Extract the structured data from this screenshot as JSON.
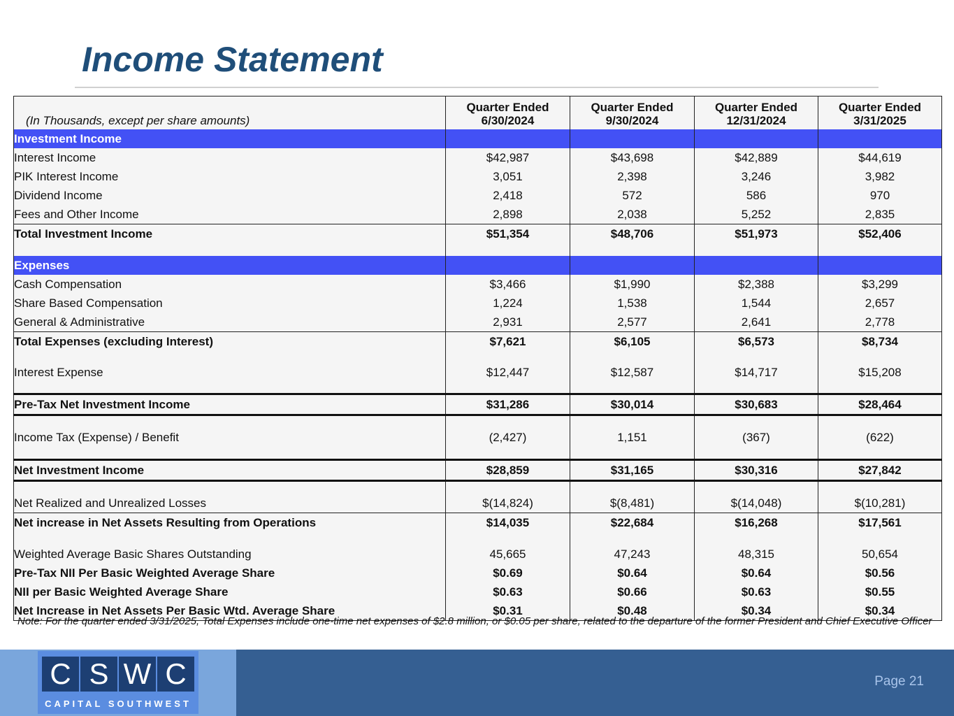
{
  "title": "Income Statement",
  "table": {
    "caption": "(In Thousands, except per share amounts)",
    "columns": [
      {
        "line1": "Quarter Ended",
        "line2": "6/30/2024"
      },
      {
        "line1": "Quarter Ended",
        "line2": "9/30/2024"
      },
      {
        "line1": "Quarter Ended",
        "line2": "12/31/2024"
      },
      {
        "line1": "Quarter Ended",
        "line2": "3/31/2025"
      }
    ],
    "rows": [
      {
        "label": "Investment Income",
        "section": true,
        "values": [
          "",
          "",
          "",
          ""
        ]
      },
      {
        "label": "Interest Income",
        "values": [
          "$42,987",
          "$43,698",
          "$42,889",
          "$44,619"
        ]
      },
      {
        "label": "PIK Interest Income",
        "values": [
          "3,051",
          "2,398",
          "3,246",
          "3,982"
        ]
      },
      {
        "label": "Dividend Income",
        "values": [
          "2,418",
          "572",
          "586",
          "970"
        ]
      },
      {
        "label": "Fees and Other Income",
        "values": [
          "2,898",
          "2,038",
          "5,252",
          "2,835"
        ]
      },
      {
        "label": "Total Investment Income",
        "bold": true,
        "values": [
          "$51,354",
          "$48,706",
          "$51,973",
          "$52,406"
        ]
      },
      {
        "label": "Expenses",
        "section": true,
        "values": [
          "",
          "",
          "",
          ""
        ]
      },
      {
        "label": "Cash Compensation",
        "values": [
          "$3,466",
          "$1,990",
          "$2,388",
          "$3,299"
        ]
      },
      {
        "label": "Share Based Compensation",
        "values": [
          "1,224",
          "1,538",
          "1,544",
          "2,657"
        ]
      },
      {
        "label": "General & Administrative",
        "values": [
          "2,931",
          "2,577",
          "2,641",
          "2,778"
        ]
      },
      {
        "label": "Total Expenses (excluding Interest)",
        "bold": true,
        "values": [
          "$7,621",
          "$6,105",
          "$6,573",
          "$8,734"
        ]
      },
      {
        "label": "Interest Expense",
        "values": [
          "$12,447",
          "$12,587",
          "$14,717",
          "$15,208"
        ]
      },
      {
        "label": "Pre-Tax Net Investment Income",
        "bold": true,
        "values": [
          "$31,286",
          "$30,014",
          "$30,683",
          "$28,464"
        ]
      },
      {
        "label": "Income Tax (Expense) / Benefit",
        "values": [
          "(2,427)",
          "1,151",
          "(367)",
          "(622)"
        ]
      },
      {
        "label": "Net Investment Income",
        "bold": true,
        "values": [
          "$28,859",
          "$31,165",
          "$30,316",
          "$27,842"
        ]
      },
      {
        "label": "Net Realized and Unrealized Losses",
        "values": [
          "$(14,824)",
          "$(8,481)",
          "$(14,048)",
          "$(10,281)"
        ]
      },
      {
        "label": "Net increase in Net Assets Resulting from Operations",
        "bold": true,
        "values": [
          "$14,035",
          "$22,684",
          "$16,268",
          "$17,561"
        ]
      },
      {
        "label": "Weighted Average Basic Shares Outstanding",
        "values": [
          "45,665",
          "47,243",
          "48,315",
          "50,654"
        ]
      },
      {
        "label": "Pre-Tax NII Per Basic Weighted Average Share",
        "bold": true,
        "values": [
          "$0.69",
          "$0.64",
          "$0.64",
          "$0.56"
        ]
      },
      {
        "label": "NII per Basic Weighted Average Share",
        "bold": true,
        "values": [
          "$0.63",
          "$0.66",
          "$0.63",
          "$0.55"
        ]
      },
      {
        "label": "Net Increase in Net Assets Per Basic Wtd. Average Share",
        "bold": true,
        "values": [
          "$0.31",
          "$0.48",
          "$0.34",
          "$0.34"
        ]
      }
    ]
  },
  "note": "Note: For the quarter ended 3/31/2025, Total Expenses include one-time net expenses of $2.8 million, or $0.05 per share, related to the departure of the former President and Chief Executive Officer",
  "footer": {
    "logo_letters": [
      "C",
      "S",
      "W",
      "C"
    ],
    "logo_subtitle": "CAPITAL SOUTHWEST",
    "page": "Page 21"
  },
  "colors": {
    "title": "#1f4e79",
    "section_band": "#4351f5",
    "footer": "#355f92",
    "footer_left": "#7aa6dc"
  }
}
